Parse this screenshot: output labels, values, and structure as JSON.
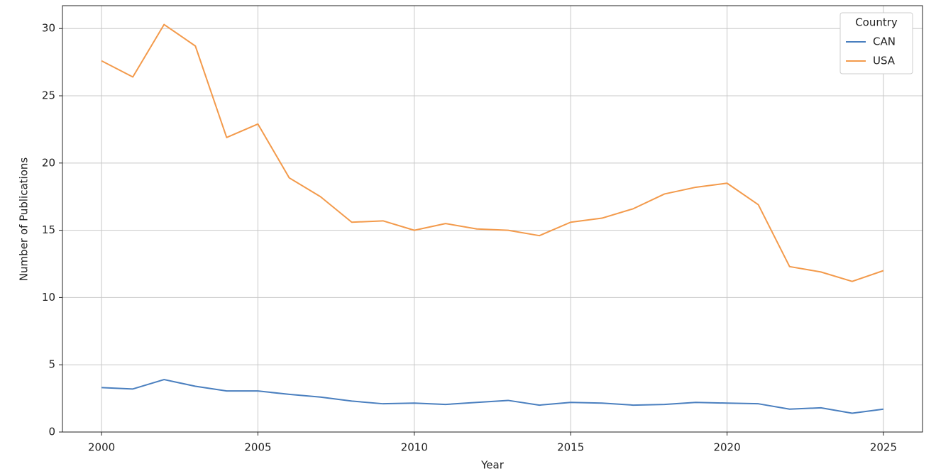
{
  "chart_data": {
    "type": "line",
    "x_label": "Year",
    "y_label": "Number of Publications",
    "x": [
      2000,
      2001,
      2002,
      2003,
      2004,
      2005,
      2006,
      2007,
      2008,
      2009,
      2010,
      2011,
      2012,
      2013,
      2014,
      2015,
      2016,
      2017,
      2018,
      2019,
      2020,
      2021,
      2022,
      2023,
      2024,
      2025
    ],
    "series": [
      {
        "name": "CAN",
        "color": "#4a7fbf",
        "values": [
          3.3,
          3.2,
          3.9,
          3.4,
          3.05,
          3.05,
          2.8,
          2.6,
          2.3,
          2.1,
          2.15,
          2.05,
          2.2,
          2.35,
          2.0,
          2.2,
          2.15,
          2.0,
          2.05,
          2.2,
          2.15,
          2.1,
          1.7,
          1.8,
          1.4,
          1.7
        ]
      },
      {
        "name": "USA",
        "color": "#f39a4b",
        "values": [
          27.6,
          26.4,
          30.3,
          28.7,
          21.9,
          22.9,
          18.9,
          17.5,
          15.6,
          15.7,
          15.0,
          15.5,
          15.1,
          15.0,
          14.6,
          15.6,
          15.9,
          16.6,
          17.7,
          18.2,
          18.5,
          16.9,
          12.3,
          11.9,
          11.2,
          12.0
        ]
      }
    ],
    "xlim": [
      1998.75,
      2026.25
    ],
    "xticks": [
      2000,
      2005,
      2010,
      2015,
      2020,
      2025
    ],
    "ylim": [
      0,
      31.7
    ],
    "yticks": [
      0,
      5,
      10,
      15,
      20,
      25,
      30
    ],
    "grid": true,
    "legend_title": "Country",
    "legend_position": "upper-right"
  }
}
